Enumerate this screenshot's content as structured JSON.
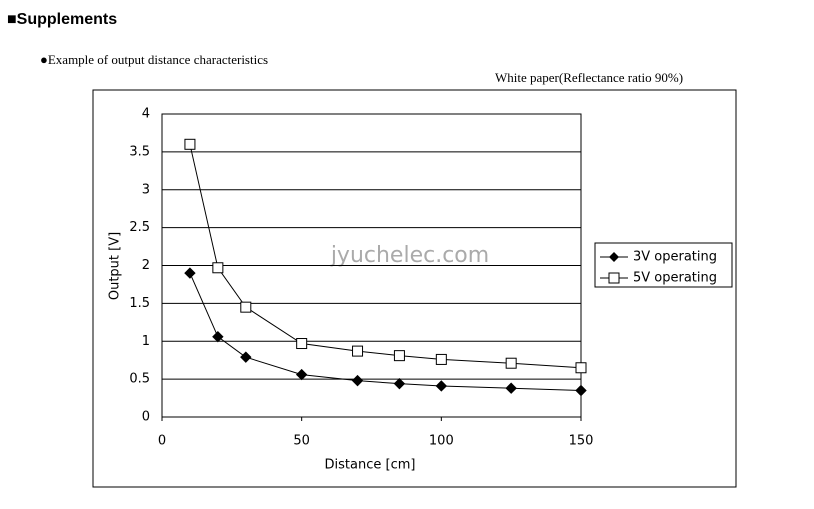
{
  "heading": "■Supplements",
  "subheading": "●Example of output distance characteristics",
  "note": "White paper(Reflectance ratio 90%)",
  "watermark": "jyuchelec.com",
  "chart_data": {
    "type": "line",
    "x_label": "Distance [cm]",
    "y_label": "Output [V]",
    "xlim": [
      0,
      150
    ],
    "xticks": [
      0,
      50,
      100,
      150
    ],
    "ylim": [
      0,
      4
    ],
    "yticks": [
      0,
      0.5,
      1,
      1.5,
      2,
      2.5,
      3,
      3.5,
      4
    ],
    "grid": true,
    "legend": "right",
    "x": [
      10,
      20,
      30,
      50,
      70,
      85,
      100,
      125,
      150
    ],
    "series": [
      {
        "name": "3V operating",
        "color": "#000000",
        "marker": "diamond",
        "values": [
          1.9,
          1.06,
          0.79,
          0.56,
          0.48,
          0.44,
          0.41,
          0.38,
          0.35
        ]
      },
      {
        "name": "5V operating",
        "color": "#000000",
        "marker": "square",
        "values": [
          3.6,
          1.97,
          1.45,
          0.97,
          0.87,
          0.81,
          0.76,
          0.71,
          0.65
        ]
      }
    ]
  }
}
